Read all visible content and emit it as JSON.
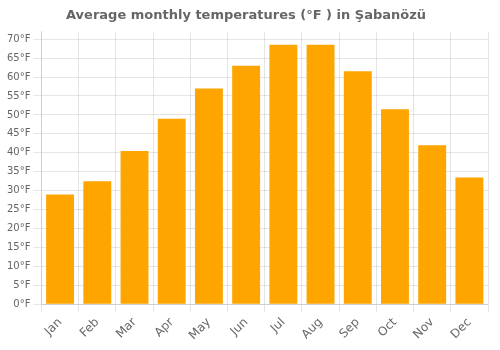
{
  "chart_data": {
    "type": "bar",
    "title": "Average monthly temperatures (°F ) in Şabanözü",
    "categories": [
      "Jan",
      "Feb",
      "Mar",
      "Apr",
      "May",
      "Jun",
      "Jul",
      "Aug",
      "Sep",
      "Oct",
      "Nov",
      "Dec"
    ],
    "values": [
      29,
      32.5,
      40.5,
      49,
      57,
      63,
      68.5,
      68.5,
      61.5,
      51.5,
      42,
      33.5
    ],
    "color": "#FFA500",
    "ylim": [
      0,
      72
    ],
    "yticks": [
      {
        "value": 0,
        "label": "0°F"
      },
      {
        "value": 5,
        "label": "5°F"
      },
      {
        "value": 10,
        "label": "10°F"
      },
      {
        "value": 15,
        "label": "15°F"
      },
      {
        "value": 20,
        "label": "20°F"
      },
      {
        "value": 25,
        "label": "25°F"
      },
      {
        "value": 30,
        "label": "30°F"
      },
      {
        "value": 35,
        "label": "35°F"
      },
      {
        "value": 40,
        "label": "40°F"
      },
      {
        "value": 45,
        "label": "45°F"
      },
      {
        "value": 50,
        "label": "50°F"
      },
      {
        "value": 55,
        "label": "55°F"
      },
      {
        "value": 60,
        "label": "60°F"
      },
      {
        "value": 65,
        "label": "65°F"
      },
      {
        "value": 70,
        "label": "70°F"
      }
    ],
    "grid": true
  }
}
